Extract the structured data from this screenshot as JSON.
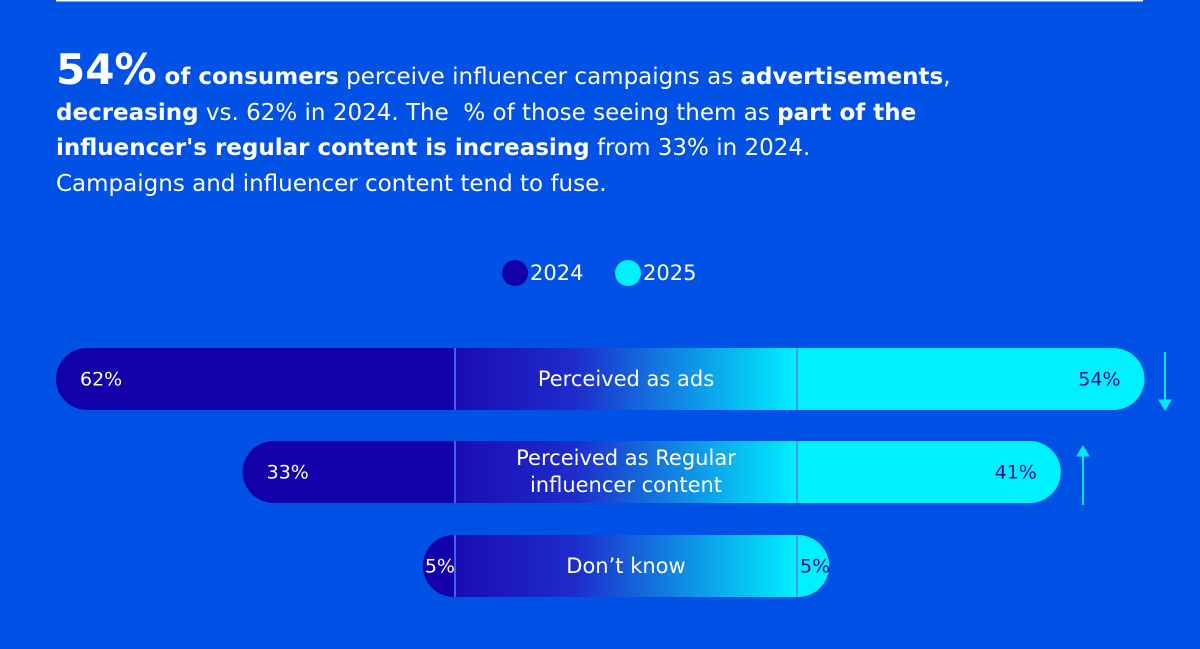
{
  "chart_data": {
    "type": "bar",
    "headline_figure": "54%",
    "headline_lines": [
      [
        {
          "text": " of consumers",
          "bold": true
        },
        {
          "text": " perceive influencer campaigns as ",
          "bold": false
        },
        {
          "text": "advertisements",
          "bold": true
        },
        {
          "text": ",",
          "bold": false
        }
      ],
      [
        {
          "text": "decreasing",
          "bold": true
        },
        {
          "text": " vs. 62% in 2024. The  % of those seeing them as ",
          "bold": false
        },
        {
          "text": "part of the",
          "bold": true
        }
      ],
      [
        {
          "text": "influencer's regular content is increasing",
          "bold": true
        },
        {
          "text": " from 33% in 2024.",
          "bold": false
        }
      ],
      [
        {
          "text": "Campaigns and influencer content tend to fuse.",
          "bold": false
        }
      ]
    ],
    "categories": [
      "Perceived as ads",
      "Perceived as Regular influencer content",
      "Don’t know"
    ],
    "series": [
      {
        "name": "2024",
        "color": "#1400a8",
        "values": [
          62,
          33,
          5
        ],
        "value_labels": [
          "62%",
          "33%",
          "5%"
        ]
      },
      {
        "name": "2025",
        "color": "#00f0ff",
        "values": [
          54,
          41,
          5
        ],
        "value_labels": [
          "54%",
          "41%",
          "5%"
        ]
      }
    ]
  }
}
